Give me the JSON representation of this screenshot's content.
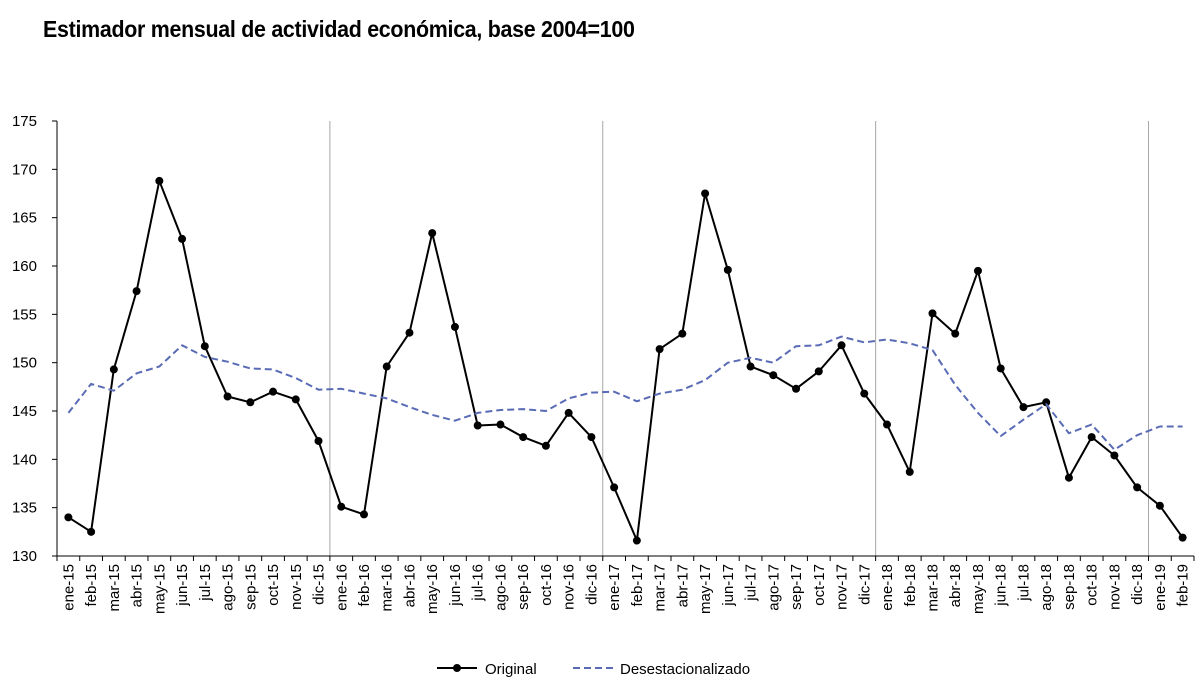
{
  "chart_data": {
    "type": "line",
    "title": "Estimador mensual de actividad económica, base 2004=100",
    "xlabel": "",
    "ylabel": "",
    "ylim": [
      130,
      175
    ],
    "yticks": [
      130,
      135,
      140,
      145,
      150,
      155,
      160,
      165,
      170,
      175
    ],
    "grid": "vertical lines at each year start",
    "legend_placement": "bottom-center",
    "categories": [
      "ene-15",
      "feb-15",
      "mar-15",
      "abr-15",
      "may-15",
      "jun-15",
      "jul-15",
      "ago-15",
      "sep-15",
      "oct-15",
      "nov-15",
      "dic-15",
      "ene-16",
      "feb-16",
      "mar-16",
      "abr-16",
      "may-16",
      "jun-16",
      "jul-16",
      "ago-16",
      "sep-16",
      "oct-16",
      "nov-16",
      "dic-16",
      "ene-17",
      "feb-17",
      "mar-17",
      "abr-17",
      "may-17",
      "jun-17",
      "jul-17",
      "ago-17",
      "sep-17",
      "oct-17",
      "nov-17",
      "dic-17",
      "ene-18",
      "feb-18",
      "mar-18",
      "abr-18",
      "may-18",
      "jun-18",
      "jul-18",
      "ago-18",
      "sep-18",
      "oct-18",
      "nov-18",
      "dic-18",
      "ene-19",
      "feb-19"
    ],
    "series": [
      {
        "name": "Original",
        "color": "#000000",
        "style": "solid-with-markers",
        "values": [
          134.0,
          132.5,
          149.3,
          157.4,
          168.8,
          162.8,
          151.7,
          146.5,
          145.9,
          147.0,
          146.2,
          141.9,
          135.1,
          134.3,
          149.6,
          153.1,
          163.4,
          153.7,
          143.5,
          143.6,
          142.3,
          141.4,
          144.8,
          142.3,
          137.1,
          131.6,
          151.4,
          153.0,
          167.5,
          159.6,
          149.6,
          148.7,
          147.3,
          149.1,
          151.8,
          146.8,
          143.6,
          138.7,
          155.1,
          153.0,
          159.5,
          149.4,
          145.4,
          145.9,
          138.1,
          142.3,
          140.4,
          137.1,
          135.2,
          131.9
        ]
      },
      {
        "name": "Desestacionalizado",
        "color": "#5a6bb5",
        "style": "dashed",
        "values": [
          144.8,
          147.8,
          147.1,
          148.9,
          149.6,
          151.8,
          150.6,
          150.1,
          149.4,
          149.3,
          148.4,
          147.2,
          147.3,
          146.8,
          146.3,
          145.4,
          144.6,
          144.0,
          144.8,
          145.1,
          145.2,
          145.0,
          146.3,
          146.9,
          147.0,
          146.0,
          146.8,
          147.2,
          148.2,
          150.0,
          150.5,
          150.0,
          151.7,
          151.8,
          152.7,
          152.1,
          152.4,
          152.0,
          151.3,
          147.7,
          144.8,
          142.4,
          144.1,
          145.7,
          142.7,
          143.6,
          141.0,
          142.5,
          143.4,
          143.4
        ]
      }
    ]
  }
}
